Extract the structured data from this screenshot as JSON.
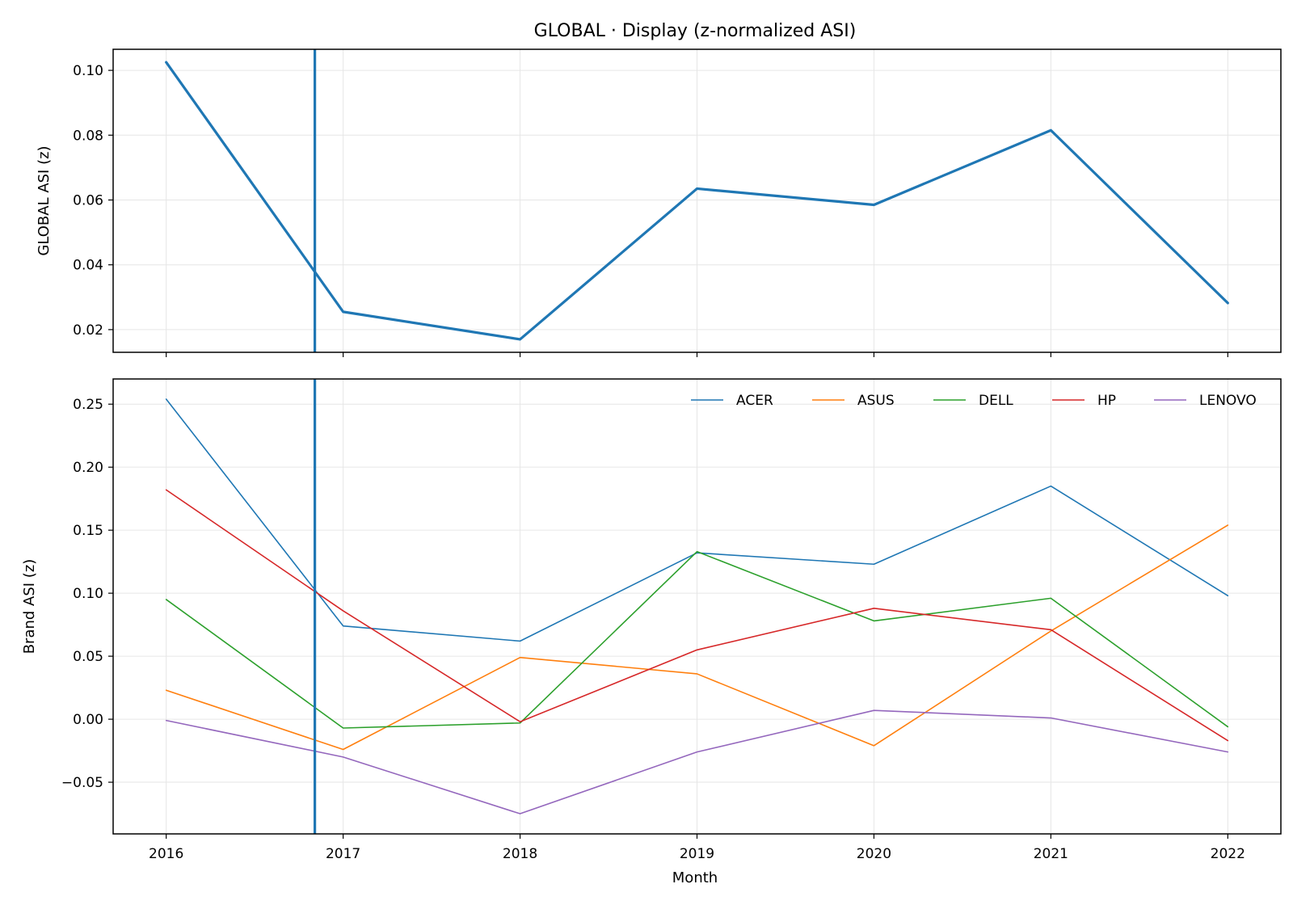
{
  "title": "GLOBAL · Display (z-normalized ASI)",
  "xlabel": "Month",
  "chart_data": [
    {
      "type": "line",
      "ylabel": "GLOBAL ASI (z)",
      "x": [
        2016,
        2017,
        2018,
        2019,
        2020,
        2021,
        2022
      ],
      "xtick_labels": [
        "2016",
        "2017",
        "2018",
        "2019",
        "2020",
        "2021",
        "2022"
      ],
      "ylim": [
        0.013,
        0.1065
      ],
      "yticks": [
        0.02,
        0.04,
        0.06,
        0.08,
        0.1
      ],
      "ytick_labels": [
        "0.02",
        "0.04",
        "0.06",
        "0.08",
        "0.10"
      ],
      "grid": true,
      "vline_x": 2016.84,
      "series": [
        {
          "color": "#1f77b4",
          "values": [
            0.1025,
            0.0255,
            0.017,
            0.0635,
            0.0585,
            0.0815,
            0.0282
          ]
        }
      ]
    },
    {
      "type": "line",
      "ylabel": "Brand ASI (z)",
      "x": [
        2016,
        2017,
        2018,
        2019,
        2020,
        2021,
        2022
      ],
      "xtick_labels": [
        "2016",
        "2017",
        "2018",
        "2019",
        "2020",
        "2021",
        "2022"
      ],
      "ylim": [
        -0.091,
        0.27
      ],
      "yticks": [
        -0.05,
        0.0,
        0.05,
        0.1,
        0.15,
        0.2,
        0.25
      ],
      "ytick_labels": [
        "−0.05",
        "0.00",
        "0.05",
        "0.10",
        "0.15",
        "0.20",
        "0.25"
      ],
      "grid": true,
      "vline_x": 2016.84,
      "legend": "top-right",
      "series": [
        {
          "name": "ACER",
          "color": "#1f77b4",
          "values": [
            0.254,
            0.074,
            0.062,
            0.132,
            0.123,
            0.185,
            0.098
          ]
        },
        {
          "name": "ASUS",
          "color": "#ff7f0e",
          "values": [
            0.023,
            -0.024,
            0.049,
            0.036,
            -0.021,
            0.07,
            0.154
          ]
        },
        {
          "name": "DELL",
          "color": "#2ca02c",
          "values": [
            0.095,
            -0.007,
            -0.003,
            0.133,
            0.078,
            0.096,
            -0.006
          ]
        },
        {
          "name": "HP",
          "color": "#d62728",
          "values": [
            0.182,
            0.086,
            -0.002,
            0.055,
            0.088,
            0.071,
            -0.017
          ]
        },
        {
          "name": "LENOVO",
          "color": "#9467bd",
          "values": [
            -0.001,
            -0.03,
            -0.075,
            -0.026,
            0.007,
            0.001,
            -0.026
          ]
        }
      ]
    }
  ]
}
